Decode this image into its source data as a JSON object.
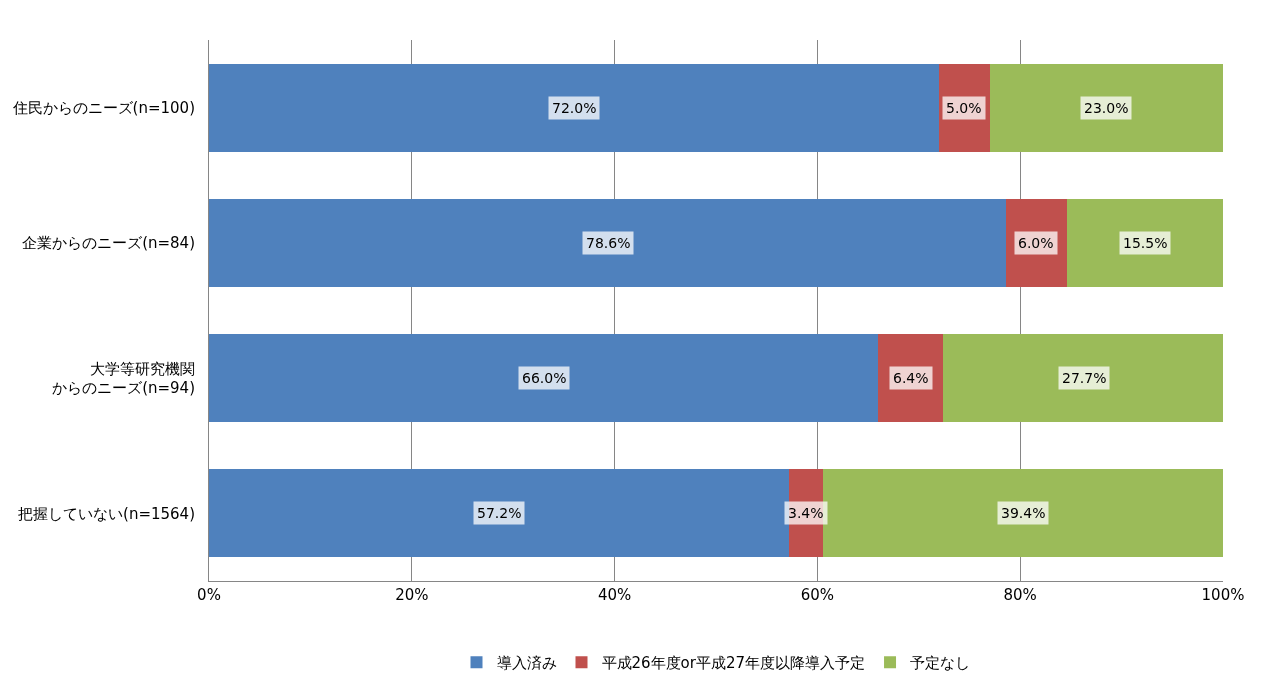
{
  "chart_data": {
    "type": "bar",
    "orientation": "horizontal",
    "stacked": true,
    "categories": [
      "住民からのニーズ(n=100)",
      "企業からのニーズ(n=84)",
      "大学等研究機関からのニーズ(n=94)",
      "把握していない(n=1564)"
    ],
    "series": [
      {
        "name": "導入済み",
        "color": "#4f81bd",
        "values": [
          72.0,
          78.6,
          66.0,
          57.2
        ],
        "value_labels": [
          "72.0%",
          "78.6%",
          "66.0%",
          "57.2%"
        ]
      },
      {
        "name": "平成26年度or平成27年度以降導入予定",
        "color": "#c0504d",
        "values": [
          5.0,
          6.0,
          6.4,
          3.4
        ],
        "value_labels": [
          "5.0%",
          "6.0%",
          "6.4%",
          "3.4%"
        ]
      },
      {
        "name": "予定なし",
        "color": "#9bbb59",
        "values": [
          23.0,
          15.5,
          27.7,
          39.4
        ],
        "value_labels": [
          "23.0%",
          "15.5%",
          "27.7%",
          "39.4%"
        ]
      }
    ],
    "xlim": [
      0,
      100
    ],
    "xticks": [
      {
        "value": 0,
        "label": "0%"
      },
      {
        "value": 20,
        "label": "20%"
      },
      {
        "value": 40,
        "label": "40%"
      },
      {
        "value": 60,
        "label": "60%"
      },
      {
        "value": 80,
        "label": "80%"
      },
      {
        "value": 100,
        "label": "100%"
      }
    ],
    "grid": "x",
    "legend": "bottom"
  }
}
